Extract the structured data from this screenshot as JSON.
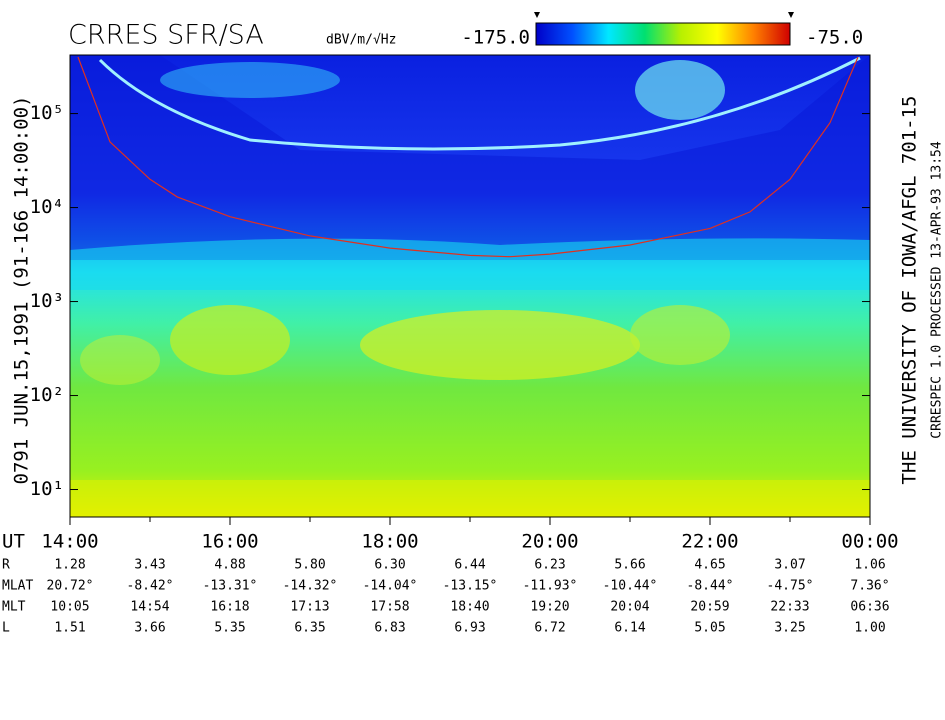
{
  "chart_data": {
    "type": "spectrogram",
    "title": "CRRES SFR/SA",
    "colorbar_unit": "dBV/m/√Hz",
    "zlim": [
      {
        "value": -175,
        "label": "-175.0"
      },
      {
        "value": -75,
        "label": "-75.0"
      }
    ],
    "colormap": [
      "#0000c8",
      "#0050ff",
      "#00e8ff",
      "#00e070",
      "#b8f000",
      "#ffff00",
      "#ff8000",
      "#d00000"
    ],
    "left_label": "0791   JUN.15,1991   (91-166 14:00:00)",
    "right_label": "THE UNIVERSITY OF IOWA/AFGL 701-15",
    "right_label_2": "CRRESPEC 1.0   PROCESSED 13-APR-93   13:54",
    "log_y": true,
    "ylim": [
      5.1,
      420000
    ],
    "yticks": [
      {
        "value": 10,
        "label": "10¹"
      },
      {
        "value": 100,
        "label": "10²"
      },
      {
        "value": 1000,
        "label": "10³"
      },
      {
        "value": 10000,
        "label": "10⁴"
      },
      {
        "value": 100000,
        "label": "10⁵"
      }
    ],
    "xlim": [
      14,
      24
    ],
    "xticks": [
      {
        "value": 14,
        "label": "14:00"
      },
      {
        "value": 16,
        "label": "16:00"
      },
      {
        "value": 18,
        "label": "18:00"
      },
      {
        "value": 20,
        "label": "20:00"
      },
      {
        "value": 22,
        "label": "22:00"
      },
      {
        "value": 24,
        "label": "00:00"
      }
    ],
    "xminor": [
      15,
      17,
      19,
      21,
      23
    ],
    "series": [
      {
        "color": "#e03020",
        "x": [
          14.1,
          14.5,
          15.0,
          15.34,
          16,
          17,
          18,
          19,
          19.5,
          20,
          21,
          22,
          22.5,
          23,
          23.5,
          23.85
        ],
        "values": [
          400000,
          50000,
          20000,
          13000,
          8000,
          5000,
          3700,
          3100,
          3000,
          3200,
          4000,
          6000,
          9000,
          20000,
          80000,
          400000
        ]
      }
    ]
  },
  "ephemeris": {
    "ut_label": "UT",
    "rows": [
      {
        "label": "R",
        "values": [
          "1.28",
          "3.43",
          "4.88",
          "5.80",
          "6.30",
          "6.44",
          "6.23",
          "5.66",
          "4.65",
          "3.07",
          "1.06"
        ]
      },
      {
        "label": "MLAT",
        "values": [
          "20.72°",
          "-8.42°",
          "-13.31°",
          "-14.32°",
          "-14.04°",
          "-13.15°",
          "-11.93°",
          "-10.44°",
          "-8.44°",
          "-4.75°",
          "7.36°"
        ]
      },
      {
        "label": "MLT",
        "values": [
          "10:05",
          "14:54",
          "16:18",
          "17:13",
          "17:58",
          "18:40",
          "19:20",
          "20:04",
          "20:59",
          "22:33",
          "06:36"
        ]
      },
      {
        "label": "L",
        "values": [
          "1.51",
          "3.66",
          "5.35",
          "6.35",
          "6.83",
          "6.93",
          "6.72",
          "6.14",
          "5.05",
          "3.25",
          "1.00"
        ]
      }
    ]
  }
}
